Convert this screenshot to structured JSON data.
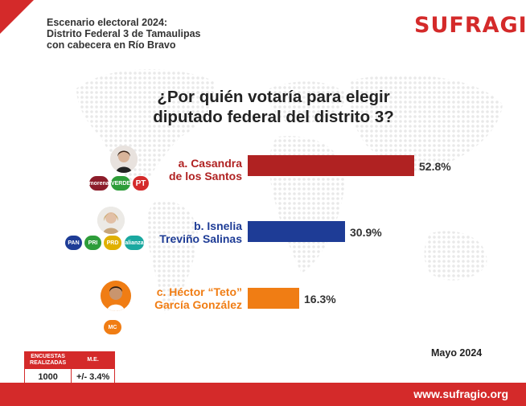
{
  "header": {
    "line1": "Escenario electoral 2024:",
    "line2": "Distrito Federal 3 de Tamaulipas",
    "line3": "con cabecera en Río Bravo"
  },
  "brand": {
    "name": "SUFRAGIO",
    "url": "www.sufragio.org",
    "color": "#d42a2a"
  },
  "question": {
    "line1": "¿Por quién votaría para elegir",
    "line2": "diputado federal del distrito 3?"
  },
  "candidates": [
    {
      "line1": "a. Casandra",
      "line2": "de los Santos",
      "value_label": "52.8%",
      "color": "#b02222",
      "parties": [
        "morena",
        "VERDE",
        "PT"
      ]
    },
    {
      "line1": "b. Isnelia",
      "line2": "Treviño Salinas",
      "value_label": "30.9%",
      "color": "#1e3c96",
      "parties": [
        "PAN",
        "PRI",
        "PRD",
        "alianza"
      ]
    },
    {
      "line1": "c. Héctor “Teto”",
      "line2": "García González",
      "value_label": "16.3%",
      "color": "#f07d14",
      "parties": [
        "MC"
      ]
    }
  ],
  "survey": {
    "col1_header_line1": "ENCUESTAS",
    "col1_header_line2": "REALIZADAS",
    "col2_header": "M.E.",
    "sample": "1000",
    "margin": "+/- 3.4%"
  },
  "date": "Mayo 2024",
  "chart_data": {
    "type": "bar",
    "orientation": "horizontal",
    "title": "¿Por quién votaría para elegir diputado federal del distrito 3?",
    "categories": [
      "a. Casandra de los Santos",
      "b. Isnelia Treviño Salinas",
      "c. Héctor “Teto” García González"
    ],
    "values": [
      52.8,
      30.9,
      16.3
    ],
    "unit": "%",
    "xlim": [
      0,
      100
    ],
    "colors": [
      "#b02222",
      "#1e3c96",
      "#f07d14"
    ],
    "xlabel": "",
    "ylabel": "",
    "grid": false
  }
}
